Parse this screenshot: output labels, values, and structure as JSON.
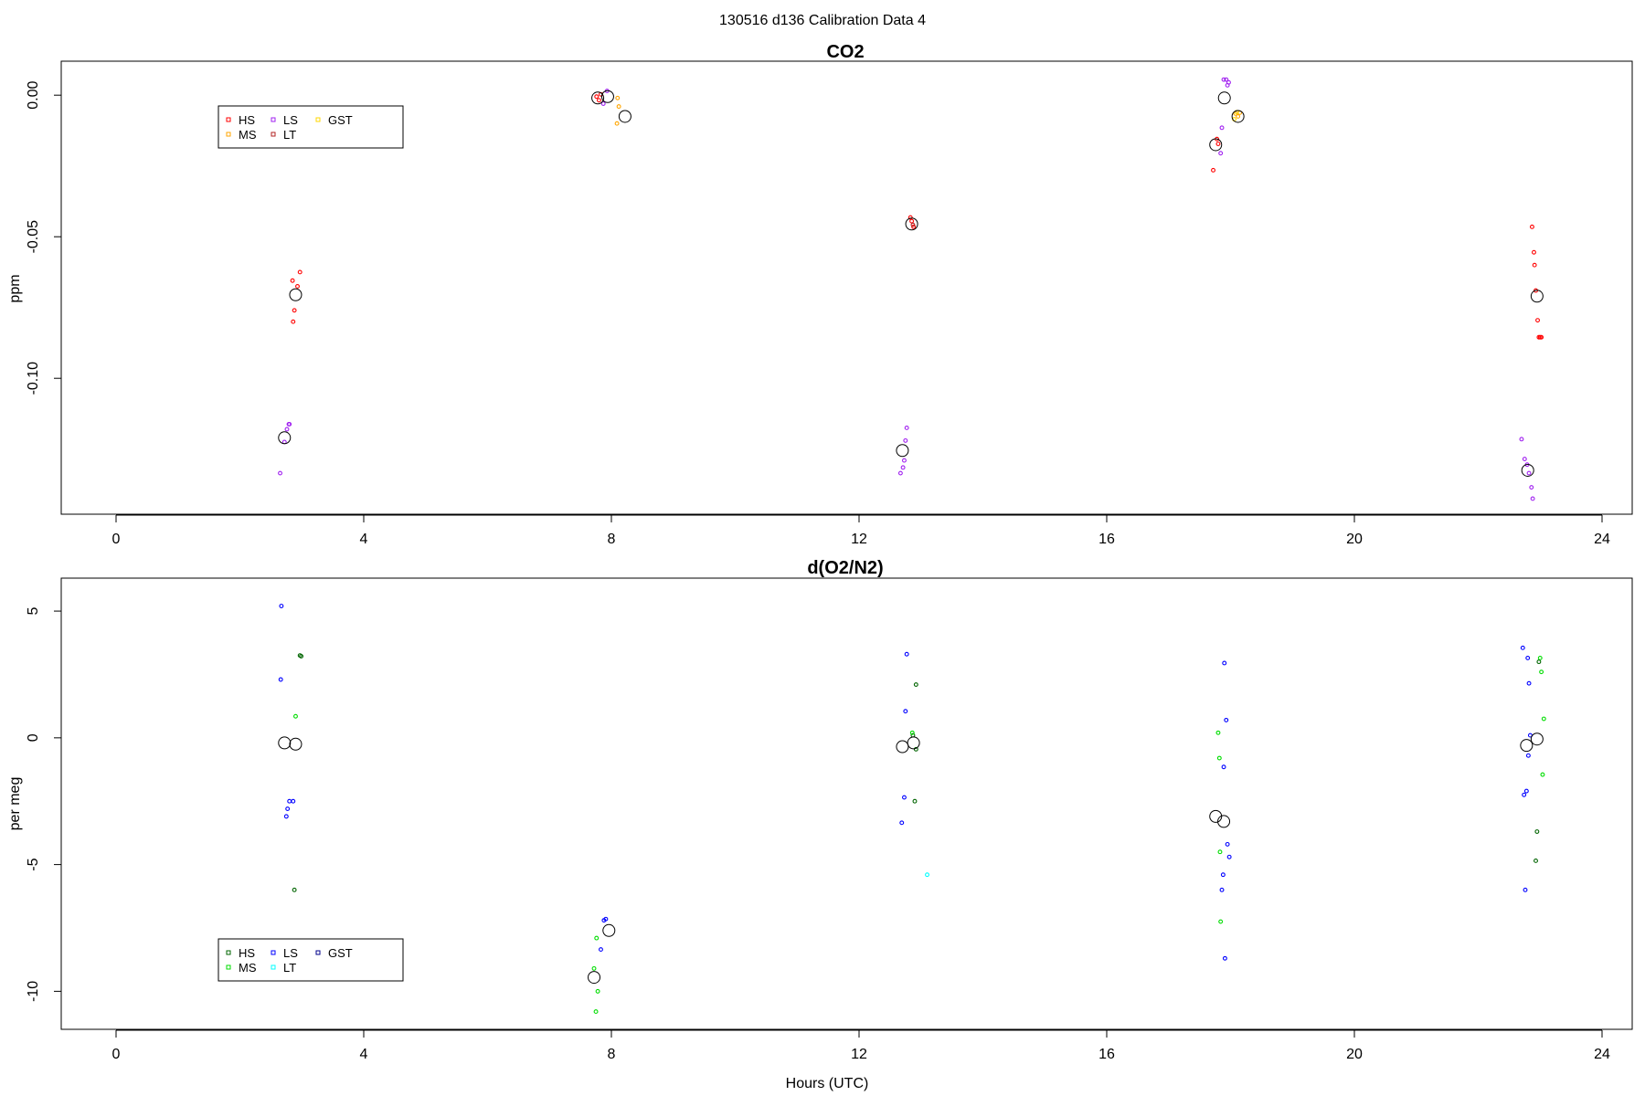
{
  "figure": {
    "title": "130516   d136   Calibration Data 4",
    "xlabel": "Hours (UTC)"
  },
  "chart_data": [
    {
      "type": "scatter",
      "title": "CO2",
      "xlabel": "",
      "ylabel": "ppm",
      "xlim": [
        -2,
        26
      ],
      "ylim": [
        -0.148,
        0.012
      ],
      "x_ticks": [
        0,
        4,
        8,
        12,
        16,
        20,
        24
      ],
      "y_ticks": [
        0.0,
        -0.05,
        -0.1
      ],
      "y_tick_labels": [
        "0.00",
        "-0.05",
        "-0.10"
      ],
      "grid": false,
      "legend": {
        "placement": "top-left",
        "entries": [
          {
            "label": "HS",
            "color": "#ff0000"
          },
          {
            "label": "MS",
            "color": "#ffa500"
          },
          {
            "label": "LS",
            "color": "#a020f0"
          },
          {
            "label": "LT",
            "color": "#b22222"
          },
          {
            "label": "GST",
            "color": "#ffd700"
          }
        ]
      },
      "series": [
        {
          "name": "HS",
          "color": "#ff0000",
          "points": [
            [
              2.85,
              -0.0655
            ],
            [
              2.93,
              -0.0675
            ],
            [
              2.97,
              -0.0625
            ],
            [
              2.88,
              -0.076
            ],
            [
              2.86,
              -0.08
            ],
            [
              7.76,
              -0.0005
            ],
            [
              7.8,
              -0.0018
            ],
            [
              7.83,
              0.0003
            ],
            [
              12.85,
              -0.0445
            ],
            [
              12.88,
              -0.0465
            ],
            [
              12.83,
              -0.0432
            ],
            [
              17.72,
              -0.0265
            ],
            [
              17.78,
              -0.0155
            ],
            [
              17.8,
              -0.0172
            ],
            [
              22.87,
              -0.0465
            ],
            [
              22.9,
              -0.0555
            ],
            [
              22.91,
              -0.06
            ],
            [
              22.93,
              -0.069
            ],
            [
              22.96,
              -0.0795
            ],
            [
              22.98,
              -0.0855
            ],
            [
              23.0,
              -0.0855
            ],
            [
              23.02,
              -0.0855
            ]
          ]
        },
        {
          "name": "MS",
          "color": "#ffa500",
          "points": [
            [
              8.1,
              -0.001
            ],
            [
              8.12,
              -0.004
            ],
            [
              8.09,
              -0.01
            ],
            [
              18.08,
              -0.0065
            ],
            [
              18.12,
              -0.0075
            ],
            [
              18.15,
              -0.0062
            ]
          ]
        },
        {
          "name": "LS",
          "color": "#a020f0",
          "points": [
            [
              2.65,
              -0.1335
            ],
            [
              2.72,
              -0.1225
            ],
            [
              2.76,
              -0.118
            ],
            [
              2.79,
              -0.1162
            ],
            [
              2.8,
              -0.1162
            ],
            [
              7.87,
              -0.003
            ],
            [
              7.93,
              0.0015
            ],
            [
              12.67,
              -0.1335
            ],
            [
              12.71,
              -0.1315
            ],
            [
              12.73,
              -0.129
            ],
            [
              12.75,
              -0.122
            ],
            [
              12.77,
              -0.1175
            ],
            [
              17.84,
              -0.0205
            ],
            [
              17.86,
              -0.0115
            ],
            [
              17.89,
              0.0055
            ],
            [
              17.93,
              0.0055
            ],
            [
              17.95,
              0.0035
            ],
            [
              17.97,
              0.0045
            ],
            [
              22.7,
              -0.1215
            ],
            [
              22.75,
              -0.1285
            ],
            [
              22.79,
              -0.1305
            ],
            [
              22.82,
              -0.1335
            ],
            [
              22.86,
              -0.1385
            ],
            [
              22.88,
              -0.1425
            ]
          ]
        },
        {
          "name": "LT",
          "color": "#b22222",
          "points": [
            [
              12.87,
              -0.0458
            ]
          ]
        },
        {
          "name": "GST",
          "color": "#ffd700",
          "points": [
            [
              18.06,
              -0.0085
            ],
            [
              18.1,
              -0.006
            ]
          ]
        },
        {
          "name": "mean",
          "color": "#000000",
          "marker": "large-circle",
          "points": [
            [
              2.72,
              -0.121
            ],
            [
              2.9,
              -0.0705
            ],
            [
              7.78,
              -0.001
            ],
            [
              7.94,
              -0.0005
            ],
            [
              8.22,
              -0.0075
            ],
            [
              12.7,
              -0.1255
            ],
            [
              12.85,
              -0.0455
            ],
            [
              17.76,
              -0.0175
            ],
            [
              17.9,
              -0.001
            ],
            [
              18.12,
              -0.0075
            ],
            [
              22.8,
              -0.1325
            ],
            [
              22.95,
              -0.071
            ]
          ]
        }
      ]
    },
    {
      "type": "scatter",
      "title": "d(O2/N2)",
      "xlabel": "Hours (UTC)",
      "ylabel": "per meg",
      "xlim": [
        -2,
        26
      ],
      "ylim": [
        -11.5,
        6.3
      ],
      "x_ticks": [
        0,
        4,
        8,
        12,
        16,
        20,
        24
      ],
      "y_ticks": [
        5,
        0,
        -5,
        -10
      ],
      "y_tick_labels": [
        "5",
        "0",
        "-5",
        "-10"
      ],
      "grid": false,
      "legend": {
        "placement": "bottom-left",
        "entries": [
          {
            "label": "HS",
            "color": "#006400"
          },
          {
            "label": "MS",
            "color": "#00dd00"
          },
          {
            "label": "LS",
            "color": "#0000ff"
          },
          {
            "label": "LT",
            "color": "#00ffff"
          },
          {
            "label": "GST",
            "color": "#00008b"
          }
        ]
      },
      "series": [
        {
          "name": "HS",
          "color": "#006400",
          "points": [
            [
              2.97,
              3.25
            ],
            [
              2.99,
              3.22
            ],
            [
              2.88,
              -6.0
            ],
            [
              12.92,
              2.1
            ],
            [
              12.9,
              -2.5
            ],
            [
              12.87,
              0.1
            ],
            [
              12.92,
              -0.45
            ],
            [
              22.98,
              3.0
            ],
            [
              22.95,
              -3.7
            ],
            [
              22.93,
              -4.85
            ]
          ]
        },
        {
          "name": "MS",
          "color": "#00dd00",
          "points": [
            [
              2.9,
              0.85
            ],
            [
              7.72,
              -9.1
            ],
            [
              7.76,
              -7.9
            ],
            [
              7.78,
              -10.0
            ],
            [
              7.75,
              -10.8
            ],
            [
              12.86,
              0.2
            ],
            [
              17.8,
              0.2
            ],
            [
              17.82,
              -0.8
            ],
            [
              17.83,
              -4.5
            ],
            [
              17.84,
              -7.25
            ],
            [
              23.0,
              3.15
            ],
            [
              23.02,
              2.6
            ],
            [
              23.06,
              0.75
            ],
            [
              23.04,
              -1.45
            ]
          ]
        },
        {
          "name": "LS",
          "color": "#0000ff",
          "points": [
            [
              2.67,
              5.2
            ],
            [
              2.66,
              2.3
            ],
            [
              2.8,
              -2.5
            ],
            [
              2.77,
              -2.8
            ],
            [
              2.75,
              -3.1
            ],
            [
              2.86,
              -2.5
            ],
            [
              7.88,
              -7.2
            ],
            [
              7.91,
              -7.15
            ],
            [
              7.83,
              -8.35
            ],
            [
              12.77,
              3.3
            ],
            [
              12.75,
              1.05
            ],
            [
              12.73,
              -2.35
            ],
            [
              12.69,
              -3.35
            ],
            [
              17.9,
              2.95
            ],
            [
              17.93,
              0.7
            ],
            [
              17.89,
              -1.15
            ],
            [
              17.95,
              -4.2
            ],
            [
              17.98,
              -4.7
            ],
            [
              17.88,
              -5.4
            ],
            [
              17.86,
              -6.0
            ],
            [
              17.91,
              -8.7
            ],
            [
              22.72,
              3.55
            ],
            [
              22.8,
              3.15
            ],
            [
              22.82,
              2.15
            ],
            [
              22.84,
              0.1
            ],
            [
              22.81,
              -0.7
            ],
            [
              22.78,
              -2.1
            ],
            [
              22.74,
              -2.25
            ],
            [
              22.76,
              -6.0
            ]
          ]
        },
        {
          "name": "LT",
          "color": "#00ffff",
          "points": [
            [
              13.1,
              -5.4
            ]
          ]
        },
        {
          "name": "GST",
          "color": "#00008b",
          "points": []
        },
        {
          "name": "mean",
          "color": "#000000",
          "marker": "large-circle",
          "points": [
            [
              2.72,
              -0.2
            ],
            [
              2.9,
              -0.25
            ],
            [
              7.72,
              -9.45
            ],
            [
              7.96,
              -7.6
            ],
            [
              12.7,
              -0.35
            ],
            [
              12.88,
              -0.2
            ],
            [
              17.76,
              -3.1
            ],
            [
              17.89,
              -3.3
            ],
            [
              22.78,
              -0.3
            ],
            [
              22.95,
              -0.05
            ]
          ]
        }
      ]
    }
  ]
}
